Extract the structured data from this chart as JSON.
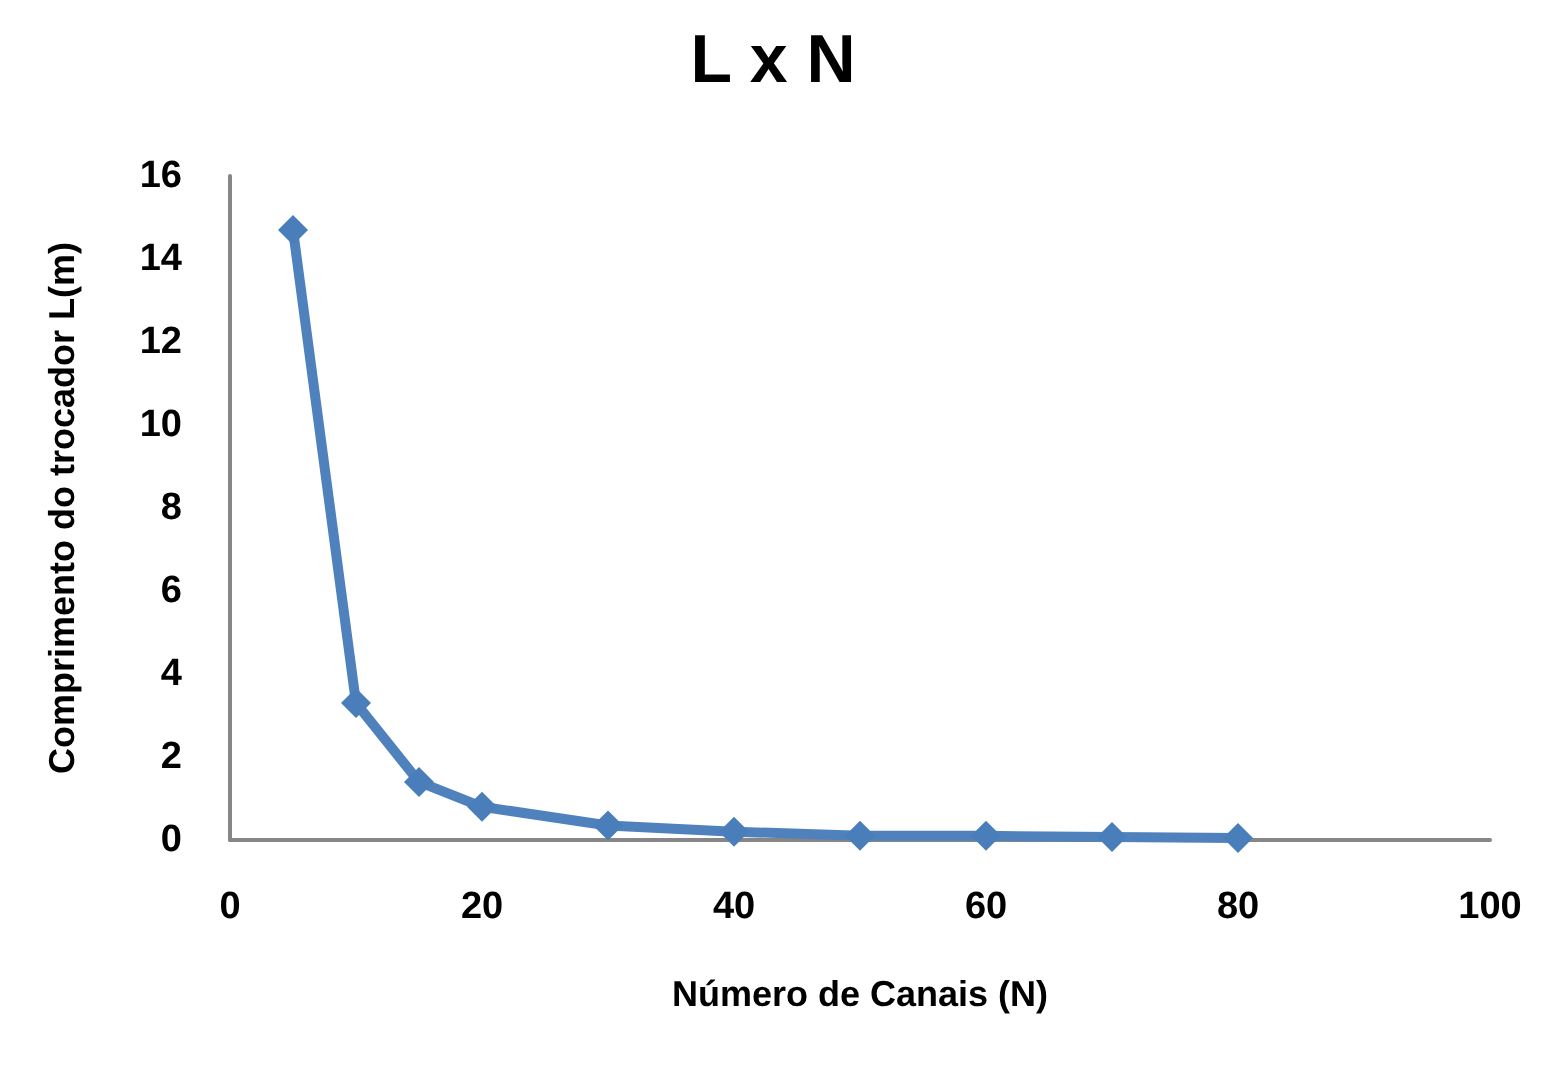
{
  "chart_data": {
    "type": "line",
    "title": "L x N",
    "xlabel": "Número de Canais (N)",
    "ylabel": "Comprimento do trocador L(m)",
    "x": [
      5,
      10,
      15,
      20,
      30,
      40,
      50,
      60,
      70,
      80
    ],
    "series": [
      {
        "color": "#4f81bd",
        "values": [
          14.7,
          3.3,
          1.4,
          0.8,
          0.35,
          0.2,
          0.1,
          0.1,
          0.07,
          0.05
        ]
      }
    ],
    "xlim": [
      0,
      100
    ],
    "xticks": [
      0,
      20,
      40,
      60,
      80,
      100
    ],
    "ylim": [
      0,
      16
    ],
    "yticks": [
      0,
      2,
      4,
      6,
      8,
      10,
      12,
      14,
      16
    ],
    "grid": false,
    "marker": "diamond",
    "line_style": "solid"
  }
}
